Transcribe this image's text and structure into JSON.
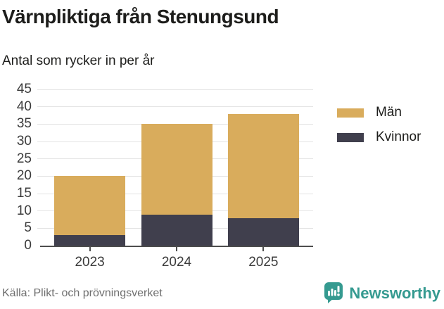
{
  "header": {
    "title": "Värnpliktiga från Stenungsund",
    "subtitle": "Antal som rycker in per år"
  },
  "chart_data": {
    "type": "bar",
    "stacked": true,
    "title": "Värnpliktiga från Stenungsund",
    "subtitle": "Antal som rycker in per år",
    "categories": [
      "2023",
      "2024",
      "2025"
    ],
    "series": [
      {
        "name": "Kvinnor",
        "color": "#403f4d",
        "values": [
          3,
          9,
          8
        ]
      },
      {
        "name": "Män",
        "color": "#d9ac5c",
        "values": [
          17,
          26,
          30
        ]
      }
    ],
    "totals": [
      20,
      35,
      38
    ],
    "xlabel": "",
    "ylabel": "",
    "ylim": [
      0,
      45
    ],
    "ytick_step": 5,
    "grid": true,
    "gridline_color": "#e4e4e4",
    "axis_color": "#4d4d4d",
    "legend_position": "right",
    "legend": [
      {
        "label": "Män",
        "color": "#d9ac5c"
      },
      {
        "label": "Kvinnor",
        "color": "#403f4d"
      }
    ]
  },
  "footer": {
    "source": "Källa: Plikt- och prövningsverket",
    "brand": "Newsworthy",
    "brand_color": "#359a90"
  }
}
